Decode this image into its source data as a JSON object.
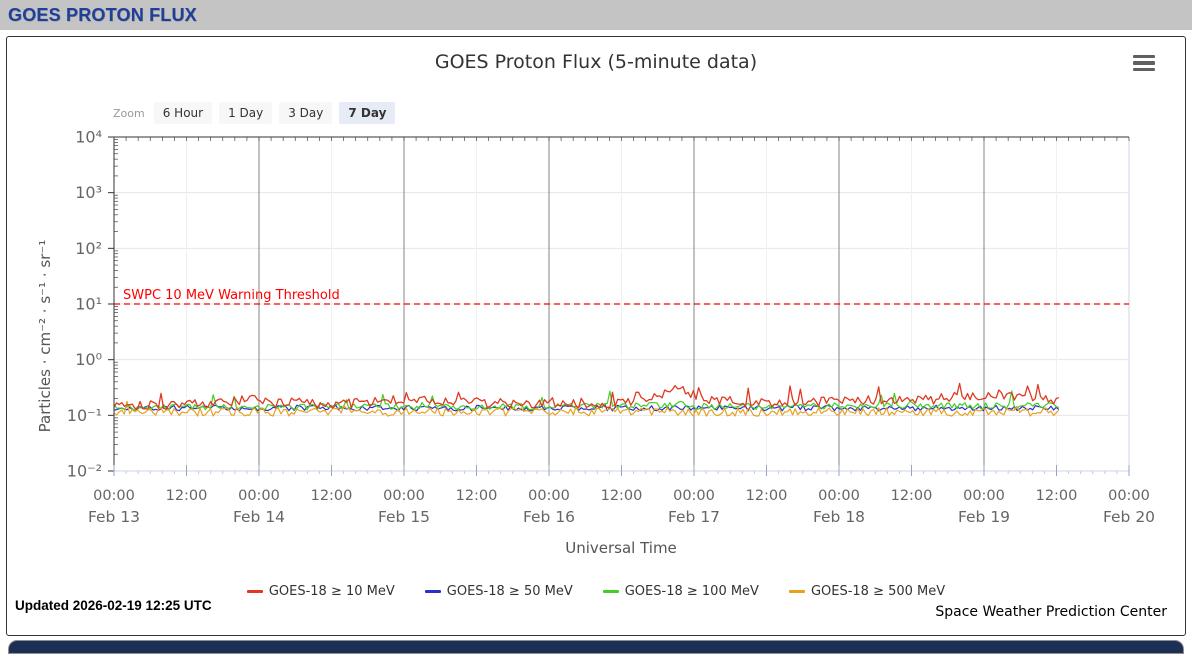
{
  "header": {
    "title": "GOES PROTON FLUX"
  },
  "chart": {
    "title": "GOES Proton Flux (5-minute data)",
    "range_selector": {
      "label": "Zoom",
      "buttons": [
        {
          "label": "6 Hour",
          "selected": false
        },
        {
          "label": "1 Day",
          "selected": false
        },
        {
          "label": "3 Day",
          "selected": false
        },
        {
          "label": "7 Day",
          "selected": true
        }
      ]
    },
    "updated_text": "Updated 2026-02-19 12:25 UTC",
    "credit": "Space Weather Prediction Center"
  },
  "chart_data": {
    "type": "line",
    "title": "GOES Proton Flux (5-minute data)",
    "xlabel": "Universal Time",
    "ylabel": "Particles · cm⁻² · s⁻¹ · sr⁻¹",
    "y_scale": "log",
    "ylim": [
      0.01,
      10000
    ],
    "y_ticks": [
      {
        "label": "10⁴",
        "value": 10000
      },
      {
        "label": "10³",
        "value": 1000
      },
      {
        "label": "10²",
        "value": 100
      },
      {
        "label": "10¹",
        "value": 10
      },
      {
        "label": "10⁰",
        "value": 1
      },
      {
        "label": "10⁻¹",
        "value": 0.1
      },
      {
        "label": "10⁻²",
        "value": 0.01
      }
    ],
    "x_ticks": [
      {
        "day": 0,
        "time": "00:00",
        "date": "Feb 13"
      },
      {
        "day": 0.5,
        "time": "12:00"
      },
      {
        "day": 1,
        "time": "00:00",
        "date": "Feb 14"
      },
      {
        "day": 1.5,
        "time": "12:00"
      },
      {
        "day": 2,
        "time": "00:00",
        "date": "Feb 15"
      },
      {
        "day": 2.5,
        "time": "12:00"
      },
      {
        "day": 3,
        "time": "00:00",
        "date": "Feb 16"
      },
      {
        "day": 3.5,
        "time": "12:00"
      },
      {
        "day": 4,
        "time": "00:00",
        "date": "Feb 17"
      },
      {
        "day": 4.5,
        "time": "12:00"
      },
      {
        "day": 5,
        "time": "00:00",
        "date": "Feb 18"
      },
      {
        "day": 5.5,
        "time": "12:00"
      },
      {
        "day": 6,
        "time": "00:00",
        "date": "Feb 19"
      },
      {
        "day": 6.5,
        "time": "12:00"
      },
      {
        "day": 7,
        "time": "00:00",
        "date": "Feb 20"
      }
    ],
    "x_range_days": 7,
    "data_end_day": 6.52,
    "threshold": {
      "label": "SWPC 10 MeV Warning Threshold",
      "value": 10,
      "color": "#ff0000"
    },
    "grid": {
      "h_color": "#e6e6e6",
      "minor_v_color": "#eef0f6",
      "day_line_color": "#858585",
      "end_line_color": "#ccd6eb",
      "axis_line_color": "#ccd6eb"
    },
    "legend_position": "bottom-center",
    "series": [
      {
        "name": "GOES-18 ≥ 10 MeV",
        "color": "#df3921",
        "noise_log": 0.09,
        "spike_prob": 0.06,
        "spike_max": 1.9,
        "keypoints": [
          [
            0,
            0.165
          ],
          [
            0.3,
            0.155
          ],
          [
            0.8,
            0.17
          ],
          [
            1.0,
            0.2
          ],
          [
            1.1,
            0.17
          ],
          [
            1.5,
            0.16
          ],
          [
            1.95,
            0.185
          ],
          [
            2.1,
            0.2
          ],
          [
            2.3,
            0.17
          ],
          [
            2.7,
            0.165
          ],
          [
            3.0,
            0.17
          ],
          [
            3.3,
            0.165
          ],
          [
            3.55,
            0.175
          ],
          [
            3.7,
            0.21
          ],
          [
            3.8,
            0.26
          ],
          [
            3.9,
            0.3
          ],
          [
            4.0,
            0.24
          ],
          [
            4.1,
            0.2
          ],
          [
            4.4,
            0.17
          ],
          [
            4.7,
            0.18
          ],
          [
            5.0,
            0.175
          ],
          [
            5.3,
            0.18
          ],
          [
            5.6,
            0.19
          ],
          [
            5.85,
            0.22
          ],
          [
            6.1,
            0.235
          ],
          [
            6.3,
            0.21
          ],
          [
            6.45,
            0.19
          ],
          [
            6.52,
            0.19
          ]
        ]
      },
      {
        "name": "GOES-18 ≥ 50 MeV",
        "color": "#2f2fc8",
        "noise_log": 0.05,
        "spike_prob": 0.015,
        "spike_max": 1.3,
        "keypoints": [
          [
            0,
            0.135
          ],
          [
            6.52,
            0.135
          ]
        ]
      },
      {
        "name": "GOES-18 ≥ 100 MeV",
        "color": "#3fd024",
        "noise_log": 0.055,
        "spike_prob": 0.035,
        "spike_max": 1.8,
        "keypoints": [
          [
            0,
            0.14
          ],
          [
            2.1,
            0.145
          ],
          [
            2.17,
            0.16
          ],
          [
            2.25,
            0.14
          ],
          [
            3.8,
            0.15
          ],
          [
            3.9,
            0.16
          ],
          [
            4.0,
            0.145
          ],
          [
            6.25,
            0.15
          ],
          [
            6.35,
            0.155
          ],
          [
            6.52,
            0.145
          ]
        ]
      },
      {
        "name": "GOES-18 ≥ 500 MeV",
        "color": "#e7a11f",
        "noise_log": 0.075,
        "spike_prob": 0.02,
        "spike_max": 1.4,
        "keypoints": [
          [
            0,
            0.115
          ],
          [
            6.52,
            0.115
          ]
        ]
      }
    ]
  }
}
